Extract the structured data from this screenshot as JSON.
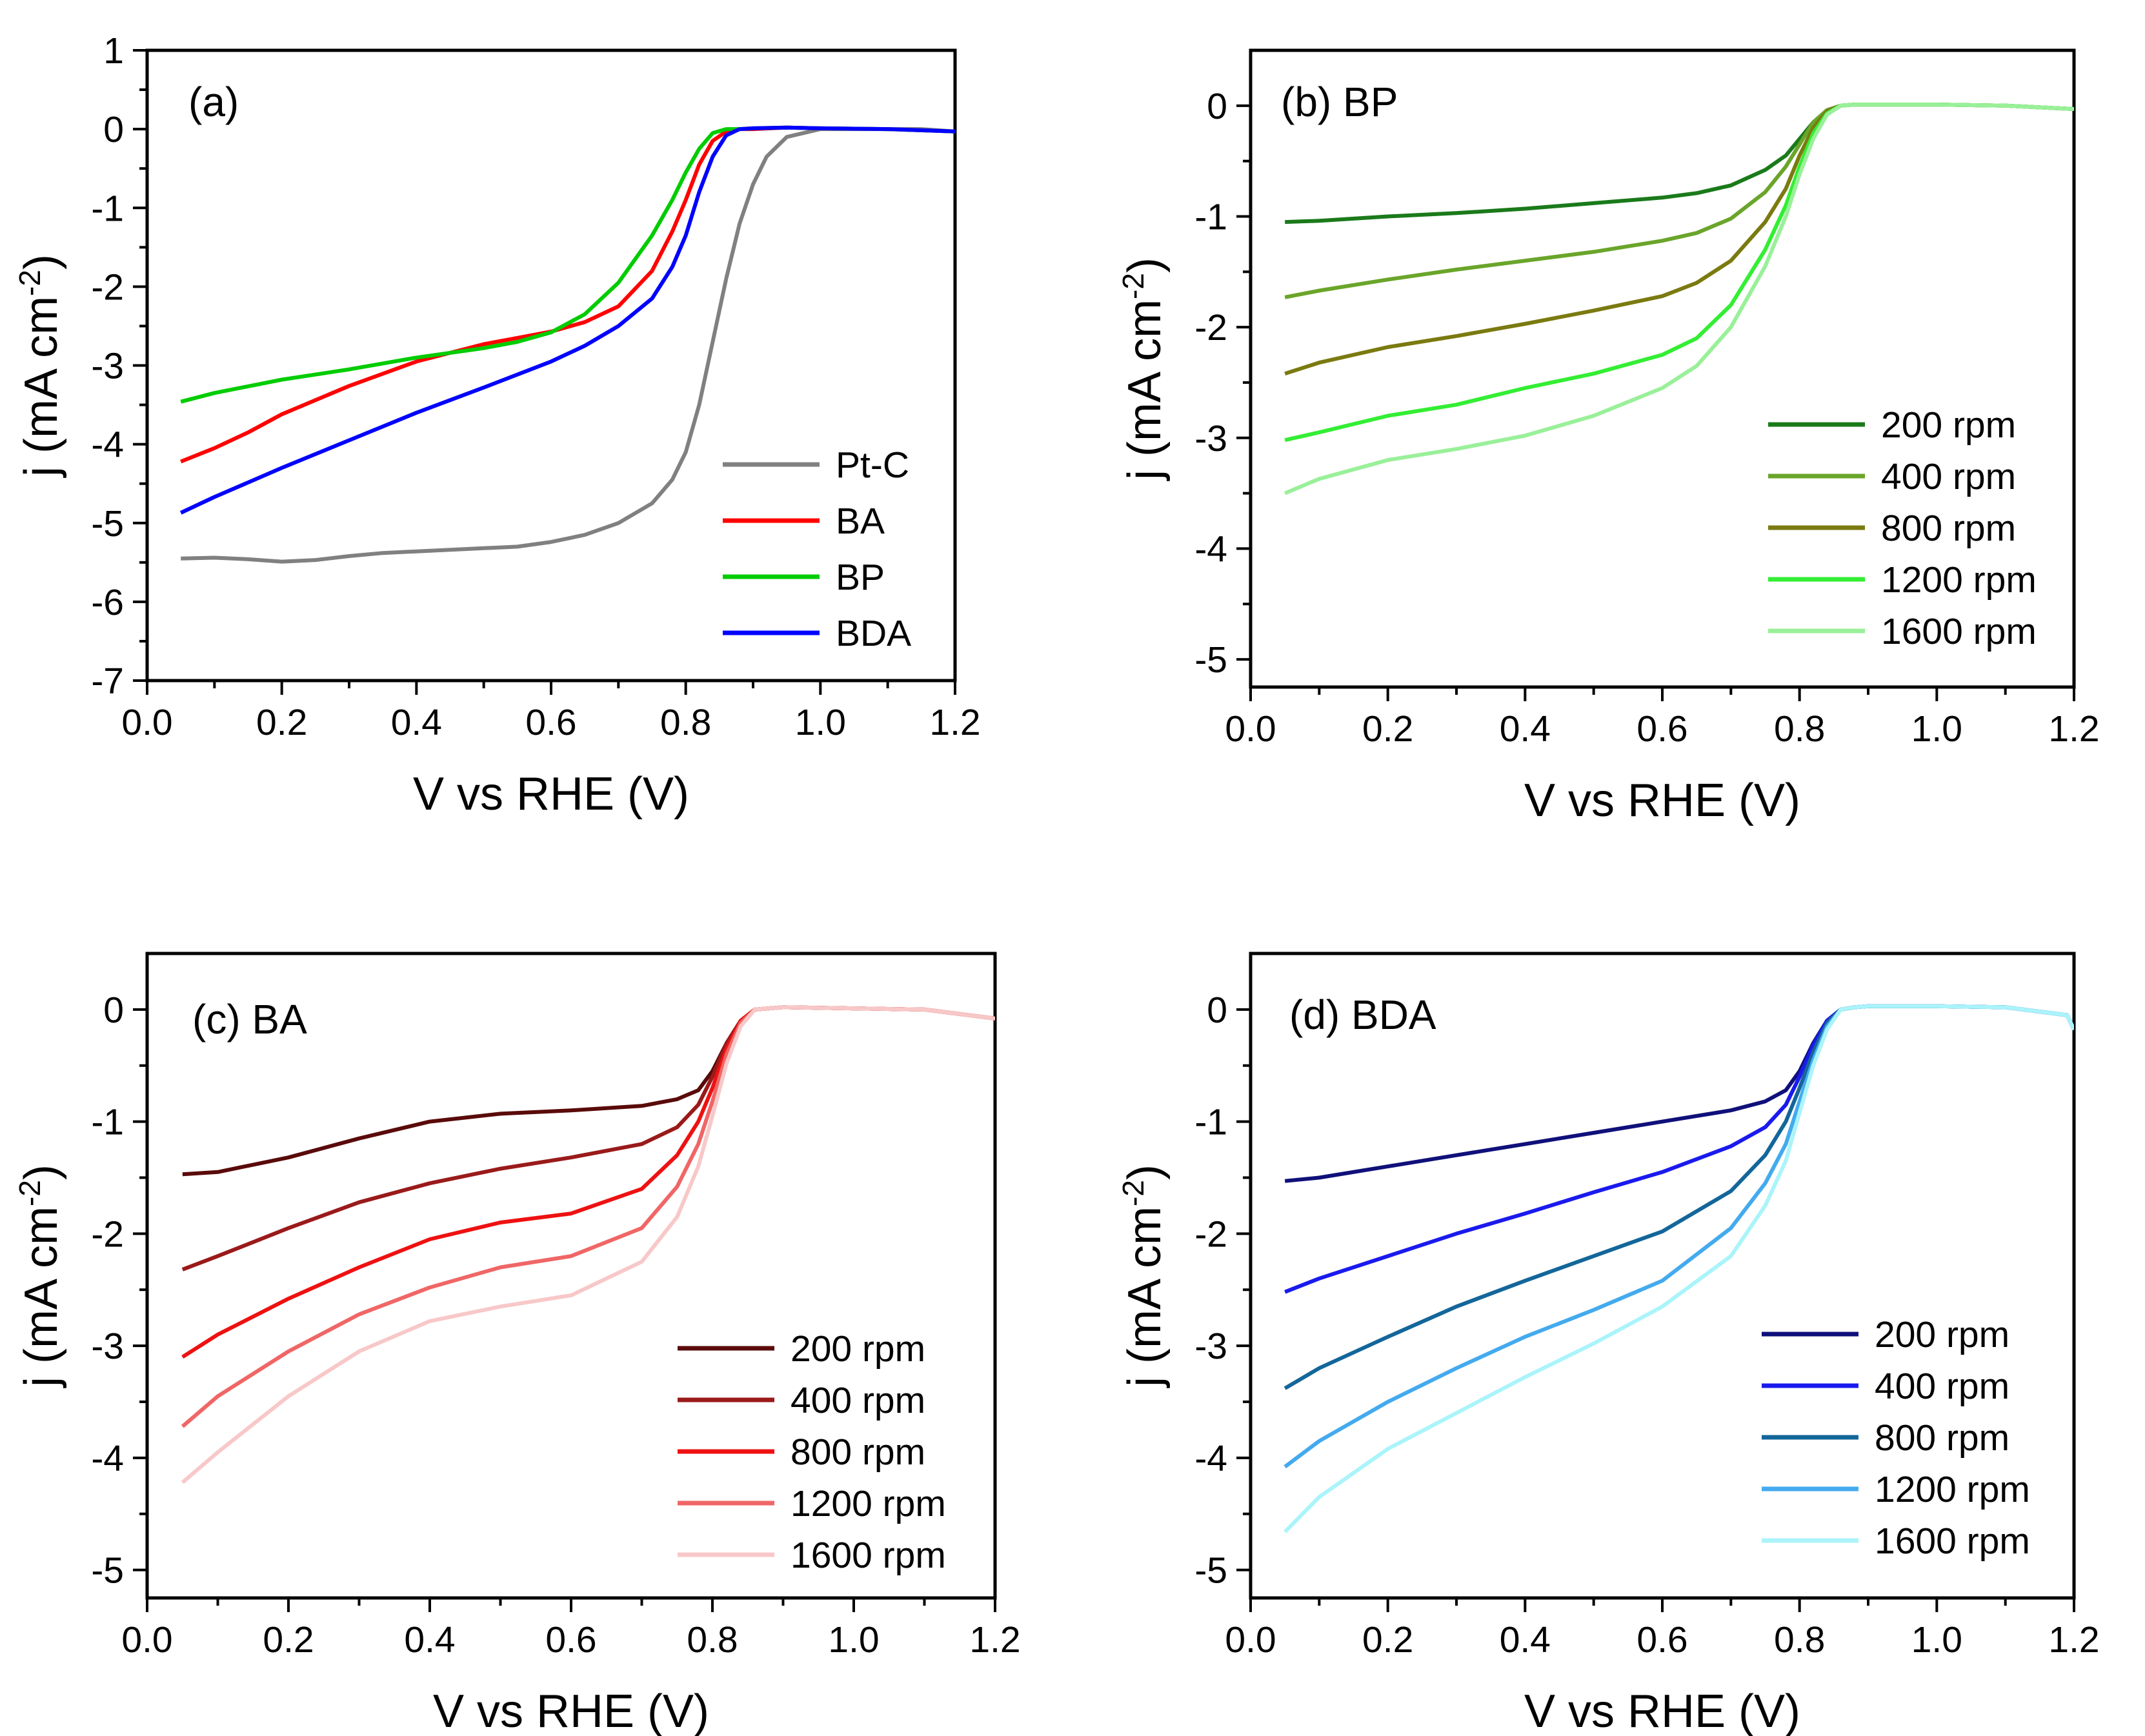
{
  "figure": {
    "x_title": "V vs RHE (V)",
    "y_title_main": "j (mA cm",
    "y_title_sup": "-2",
    "y_title_close": ")"
  },
  "chart_data": [
    {
      "type": "line",
      "panel": "(a)",
      "title": "",
      "xlabel": "V vs RHE (V)",
      "ylabel": "j (mA cm-2)",
      "xlim": [
        0.0,
        1.2
      ],
      "ylim": [
        -7,
        1
      ],
      "xticks": [
        "0.0",
        "0.2",
        "0.4",
        "0.6",
        "0.8",
        "1.0",
        "1.2"
      ],
      "yticks": [
        "1",
        "0",
        "-1",
        "-2",
        "-3",
        "-4",
        "-5",
        "-6",
        "-7"
      ],
      "legend_position": "bottom-right",
      "series": [
        {
          "name": "Pt-C",
          "color": "#808080",
          "x": [
            0.05,
            0.1,
            0.15,
            0.2,
            0.25,
            0.3,
            0.35,
            0.4,
            0.45,
            0.5,
            0.55,
            0.6,
            0.65,
            0.7,
            0.75,
            0.78,
            0.8,
            0.82,
            0.84,
            0.86,
            0.88,
            0.9,
            0.92,
            0.95,
            1.0,
            1.05,
            1.1,
            1.15,
            1.2
          ],
          "y": [
            -5.45,
            -5.44,
            -5.46,
            -5.49,
            -5.47,
            -5.42,
            -5.38,
            -5.36,
            -5.34,
            -5.32,
            -5.3,
            -5.24,
            -5.15,
            -5.0,
            -4.75,
            -4.45,
            -4.1,
            -3.5,
            -2.7,
            -1.9,
            -1.2,
            -0.7,
            -0.35,
            -0.1,
            0.0,
            0.0,
            0.0,
            0.0,
            -0.03
          ]
        },
        {
          "name": "BA",
          "color": "#ff0000",
          "x": [
            0.05,
            0.1,
            0.15,
            0.2,
            0.3,
            0.4,
            0.5,
            0.55,
            0.6,
            0.65,
            0.7,
            0.75,
            0.78,
            0.8,
            0.82,
            0.84,
            0.86,
            0.88,
            0.9,
            0.95,
            1.0,
            1.1,
            1.2
          ],
          "y": [
            -4.22,
            -4.05,
            -3.85,
            -3.62,
            -3.26,
            -2.95,
            -2.73,
            -2.65,
            -2.57,
            -2.45,
            -2.25,
            -1.8,
            -1.3,
            -0.9,
            -0.45,
            -0.15,
            -0.03,
            0.0,
            0.0,
            0.02,
            0.01,
            0.0,
            -0.03
          ]
        },
        {
          "name": "BP",
          "color": "#00cc00",
          "x": [
            0.05,
            0.1,
            0.2,
            0.3,
            0.4,
            0.5,
            0.55,
            0.6,
            0.65,
            0.7,
            0.75,
            0.78,
            0.8,
            0.82,
            0.84,
            0.86,
            0.88,
            0.9,
            0.95,
            1.0,
            1.1,
            1.2
          ],
          "y": [
            -3.46,
            -3.35,
            -3.18,
            -3.05,
            -2.9,
            -2.78,
            -2.7,
            -2.58,
            -2.35,
            -1.95,
            -1.35,
            -0.9,
            -0.55,
            -0.25,
            -0.05,
            0.0,
            0.0,
            0.01,
            0.02,
            0.01,
            0.0,
            -0.03
          ]
        },
        {
          "name": "BDA",
          "color": "#0000ff",
          "x": [
            0.05,
            0.1,
            0.2,
            0.3,
            0.4,
            0.5,
            0.6,
            0.65,
            0.7,
            0.75,
            0.78,
            0.8,
            0.82,
            0.84,
            0.86,
            0.88,
            0.9,
            0.95,
            1.0,
            1.1,
            1.2
          ],
          "y": [
            -4.87,
            -4.67,
            -4.3,
            -3.95,
            -3.6,
            -3.28,
            -2.95,
            -2.75,
            -2.5,
            -2.15,
            -1.75,
            -1.35,
            -0.8,
            -0.35,
            -0.08,
            0.0,
            0.01,
            0.02,
            0.01,
            0.0,
            -0.03
          ]
        }
      ]
    },
    {
      "type": "line",
      "panel": "(b)",
      "title": "BP",
      "xlabel": "V vs RHE (V)",
      "ylabel": "j (mA cm-2)",
      "xlim": [
        0.0,
        1.2
      ],
      "ylim": [
        -5.25,
        0.5
      ],
      "xticks": [
        "0.0",
        "0.2",
        "0.4",
        "0.6",
        "0.8",
        "1.0",
        "1.2"
      ],
      "yticks": [
        "0",
        "-1",
        "-2",
        "-3",
        "-4",
        "-5"
      ],
      "legend_position": "bottom-right",
      "series": [
        {
          "name": "200 rpm",
          "color": "#1a7a1a",
          "x": [
            0.05,
            0.1,
            0.2,
            0.3,
            0.4,
            0.5,
            0.6,
            0.65,
            0.7,
            0.75,
            0.78,
            0.8,
            0.82,
            0.84,
            0.86,
            0.88,
            0.9,
            1.0,
            1.1,
            1.2
          ],
          "y": [
            -1.05,
            -1.04,
            -1.0,
            -0.97,
            -0.93,
            -0.88,
            -0.83,
            -0.79,
            -0.72,
            -0.58,
            -0.45,
            -0.3,
            -0.15,
            -0.04,
            0.0,
            0.01,
            0.01,
            0.01,
            0.0,
            -0.03
          ]
        },
        {
          "name": "400 rpm",
          "color": "#6aa52a",
          "x": [
            0.05,
            0.1,
            0.2,
            0.3,
            0.4,
            0.5,
            0.6,
            0.65,
            0.7,
            0.75,
            0.78,
            0.8,
            0.82,
            0.84,
            0.86,
            0.88,
            0.9,
            1.0,
            1.1,
            1.2
          ],
          "y": [
            -1.73,
            -1.67,
            -1.57,
            -1.48,
            -1.4,
            -1.32,
            -1.22,
            -1.15,
            -1.02,
            -0.78,
            -0.55,
            -0.35,
            -0.15,
            -0.04,
            0.0,
            0.01,
            0.01,
            0.01,
            0.0,
            -0.03
          ]
        },
        {
          "name": "800 rpm",
          "color": "#7a7a10",
          "x": [
            0.05,
            0.1,
            0.2,
            0.3,
            0.4,
            0.5,
            0.6,
            0.65,
            0.7,
            0.75,
            0.78,
            0.8,
            0.82,
            0.84,
            0.86,
            0.88,
            0.9,
            1.0,
            1.1,
            1.2
          ],
          "y": [
            -2.42,
            -2.32,
            -2.18,
            -2.08,
            -1.97,
            -1.85,
            -1.72,
            -1.6,
            -1.4,
            -1.05,
            -0.75,
            -0.45,
            -0.2,
            -0.05,
            0.0,
            0.01,
            0.01,
            0.01,
            0.0,
            -0.03
          ]
        },
        {
          "name": "1200 rpm",
          "color": "#33ee33",
          "x": [
            0.05,
            0.1,
            0.2,
            0.3,
            0.4,
            0.5,
            0.6,
            0.65,
            0.7,
            0.75,
            0.78,
            0.8,
            0.82,
            0.84,
            0.86,
            0.88,
            0.9,
            1.0,
            1.1,
            1.2
          ],
          "y": [
            -3.02,
            -2.95,
            -2.8,
            -2.7,
            -2.55,
            -2.42,
            -2.25,
            -2.1,
            -1.8,
            -1.3,
            -0.9,
            -0.55,
            -0.25,
            -0.07,
            0.0,
            0.01,
            0.01,
            0.01,
            0.0,
            -0.03
          ]
        },
        {
          "name": "1600 rpm",
          "color": "#99f099",
          "x": [
            0.05,
            0.1,
            0.2,
            0.3,
            0.4,
            0.5,
            0.6,
            0.65,
            0.7,
            0.75,
            0.78,
            0.8,
            0.82,
            0.84,
            0.86,
            0.88,
            0.9,
            1.0,
            1.1,
            1.2
          ],
          "y": [
            -3.5,
            -3.37,
            -3.2,
            -3.1,
            -2.98,
            -2.8,
            -2.55,
            -2.35,
            -2.0,
            -1.45,
            -1.0,
            -0.62,
            -0.3,
            -0.08,
            0.0,
            0.01,
            0.01,
            0.01,
            0.0,
            -0.03
          ]
        }
      ]
    },
    {
      "type": "line",
      "panel": "(c)",
      "title": "BA",
      "xlabel": "V vs RHE (V)",
      "ylabel": "j (mA cm-2)",
      "xlim": [
        0.0,
        1.2
      ],
      "ylim": [
        -5.25,
        0.5
      ],
      "xticks": [
        "0.0",
        "0.2",
        "0.4",
        "0.6",
        "0.8",
        "1.0",
        "1.2"
      ],
      "yticks": [
        "0",
        "-1",
        "-2",
        "-3",
        "-4",
        "-5"
      ],
      "legend_position": "bottom-right",
      "series": [
        {
          "name": "200 rpm",
          "color": "#5a0a0a",
          "x": [
            0.05,
            0.1,
            0.2,
            0.3,
            0.4,
            0.5,
            0.6,
            0.7,
            0.75,
            0.78,
            0.8,
            0.82,
            0.84,
            0.86,
            0.88,
            0.9,
            1.0,
            1.1,
            1.2
          ],
          "y": [
            -1.47,
            -1.45,
            -1.32,
            -1.15,
            -1.0,
            -0.93,
            -0.9,
            -0.86,
            -0.8,
            -0.72,
            -0.55,
            -0.3,
            -0.1,
            0.0,
            0.01,
            0.02,
            0.01,
            0.0,
            -0.08
          ]
        },
        {
          "name": "400 rpm",
          "color": "#9a1a1a",
          "x": [
            0.05,
            0.1,
            0.2,
            0.3,
            0.4,
            0.5,
            0.6,
            0.7,
            0.75,
            0.78,
            0.8,
            0.82,
            0.84,
            0.86,
            0.88,
            0.9,
            1.0,
            1.1,
            1.2
          ],
          "y": [
            -2.32,
            -2.2,
            -1.95,
            -1.72,
            -1.55,
            -1.42,
            -1.32,
            -1.2,
            -1.05,
            -0.85,
            -0.6,
            -0.3,
            -0.1,
            0.0,
            0.01,
            0.02,
            0.01,
            0.0,
            -0.08
          ]
        },
        {
          "name": "800 rpm",
          "color": "#ee1111",
          "x": [
            0.05,
            0.1,
            0.2,
            0.3,
            0.4,
            0.5,
            0.6,
            0.7,
            0.75,
            0.78,
            0.8,
            0.82,
            0.84,
            0.86,
            0.88,
            0.9,
            1.0,
            1.1,
            1.2
          ],
          "y": [
            -3.1,
            -2.9,
            -2.58,
            -2.3,
            -2.05,
            -1.9,
            -1.82,
            -1.6,
            -1.3,
            -1.0,
            -0.7,
            -0.35,
            -0.1,
            0.0,
            0.01,
            0.02,
            0.01,
            0.0,
            -0.08
          ]
        },
        {
          "name": "1200 rpm",
          "color": "#f06666",
          "x": [
            0.05,
            0.1,
            0.2,
            0.3,
            0.4,
            0.5,
            0.6,
            0.7,
            0.75,
            0.78,
            0.8,
            0.82,
            0.84,
            0.86,
            0.88,
            0.9,
            1.0,
            1.1,
            1.2
          ],
          "y": [
            -3.72,
            -3.45,
            -3.05,
            -2.72,
            -2.48,
            -2.3,
            -2.2,
            -1.95,
            -1.58,
            -1.2,
            -0.82,
            -0.4,
            -0.12,
            0.0,
            0.01,
            0.02,
            0.01,
            0.0,
            -0.08
          ]
        },
        {
          "name": "1600 rpm",
          "color": "#f8c8c8",
          "x": [
            0.05,
            0.1,
            0.2,
            0.3,
            0.4,
            0.5,
            0.6,
            0.7,
            0.75,
            0.78,
            0.8,
            0.82,
            0.84,
            0.86,
            0.88,
            0.9,
            1.0,
            1.1,
            1.2
          ],
          "y": [
            -4.22,
            -3.95,
            -3.45,
            -3.05,
            -2.78,
            -2.65,
            -2.55,
            -2.25,
            -1.85,
            -1.4,
            -0.95,
            -0.48,
            -0.15,
            0.0,
            0.01,
            0.02,
            0.01,
            0.0,
            -0.08
          ]
        }
      ]
    },
    {
      "type": "line",
      "panel": "(d)",
      "title": "BDA",
      "xlabel": "V vs RHE (V)",
      "ylabel": "j (mA cm-2)",
      "xlim": [
        0.0,
        1.2
      ],
      "ylim": [
        -5.25,
        0.5
      ],
      "xticks": [
        "0.0",
        "0.2",
        "0.4",
        "0.6",
        "0.8",
        "1.0",
        "1.2"
      ],
      "yticks": [
        "0",
        "-1",
        "-2",
        "-3",
        "-4",
        "-5"
      ],
      "legend_position": "bottom-right",
      "series": [
        {
          "name": "200 rpm",
          "color": "#10107a",
          "x": [
            0.05,
            0.1,
            0.2,
            0.3,
            0.4,
            0.5,
            0.6,
            0.7,
            0.75,
            0.78,
            0.8,
            0.82,
            0.84,
            0.86,
            0.88,
            0.9,
            1.0,
            1.1,
            1.19,
            1.2
          ],
          "y": [
            -1.53,
            -1.5,
            -1.4,
            -1.3,
            -1.2,
            -1.1,
            -1.0,
            -0.9,
            -0.82,
            -0.72,
            -0.55,
            -0.3,
            -0.1,
            0.0,
            0.02,
            0.03,
            0.03,
            0.02,
            -0.05,
            -0.18
          ]
        },
        {
          "name": "400 rpm",
          "color": "#1a1aee",
          "x": [
            0.05,
            0.1,
            0.2,
            0.3,
            0.4,
            0.5,
            0.6,
            0.7,
            0.75,
            0.78,
            0.8,
            0.82,
            0.84,
            0.86,
            0.88,
            0.9,
            1.0,
            1.1,
            1.19,
            1.2
          ],
          "y": [
            -2.52,
            -2.4,
            -2.2,
            -2.0,
            -1.82,
            -1.63,
            -1.45,
            -1.22,
            -1.05,
            -0.85,
            -0.6,
            -0.32,
            -0.1,
            0.0,
            0.02,
            0.03,
            0.03,
            0.02,
            -0.05,
            -0.18
          ]
        },
        {
          "name": "800 rpm",
          "color": "#13669a",
          "x": [
            0.05,
            0.1,
            0.2,
            0.3,
            0.4,
            0.5,
            0.6,
            0.7,
            0.75,
            0.78,
            0.8,
            0.82,
            0.84,
            0.86,
            0.88,
            0.9,
            1.0,
            1.1,
            1.19,
            1.2
          ],
          "y": [
            -3.38,
            -3.2,
            -2.92,
            -2.65,
            -2.42,
            -2.2,
            -1.98,
            -1.62,
            -1.3,
            -1.0,
            -0.7,
            -0.38,
            -0.12,
            0.0,
            0.02,
            0.03,
            0.03,
            0.02,
            -0.05,
            -0.18
          ]
        },
        {
          "name": "1200 rpm",
          "color": "#44aaee",
          "x": [
            0.05,
            0.1,
            0.2,
            0.3,
            0.4,
            0.5,
            0.6,
            0.7,
            0.75,
            0.78,
            0.8,
            0.82,
            0.84,
            0.86,
            0.88,
            0.9,
            1.0,
            1.1,
            1.19,
            1.2
          ],
          "y": [
            -4.08,
            -3.85,
            -3.5,
            -3.2,
            -2.92,
            -2.68,
            -2.42,
            -1.95,
            -1.55,
            -1.2,
            -0.82,
            -0.45,
            -0.15,
            0.0,
            0.02,
            0.03,
            0.03,
            0.02,
            -0.05,
            -0.18
          ]
        },
        {
          "name": "1600 rpm",
          "color": "#aaf4fa",
          "x": [
            0.05,
            0.1,
            0.2,
            0.3,
            0.4,
            0.5,
            0.6,
            0.7,
            0.75,
            0.78,
            0.8,
            0.82,
            0.84,
            0.86,
            0.88,
            0.9,
            1.0,
            1.1,
            1.19,
            1.2
          ],
          "y": [
            -4.66,
            -4.35,
            -3.92,
            -3.6,
            -3.28,
            -2.98,
            -2.65,
            -2.2,
            -1.75,
            -1.35,
            -0.92,
            -0.5,
            -0.18,
            0.0,
            0.02,
            0.03,
            0.03,
            0.02,
            -0.05,
            -0.18
          ]
        }
      ]
    }
  ]
}
